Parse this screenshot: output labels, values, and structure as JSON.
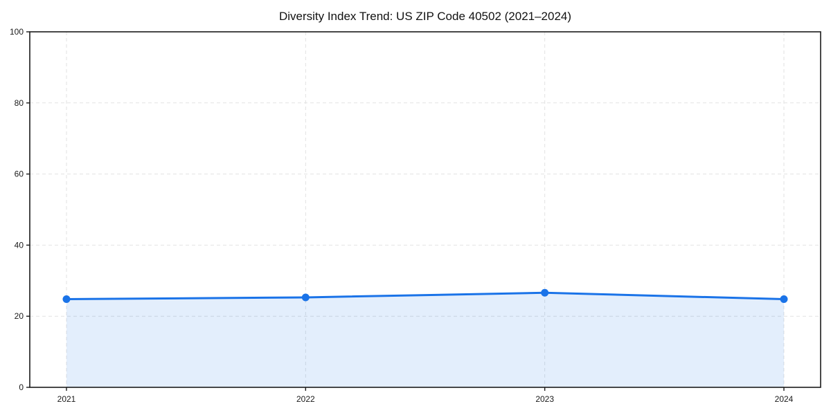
{
  "chart_data": {
    "type": "line",
    "title": "Diversity Index Trend: US ZIP Code 40502 (2021–2024)",
    "x": [
      "2021",
      "2022",
      "2023",
      "2024"
    ],
    "series": [
      {
        "name": "Diversity Index",
        "values": [
          24.8,
          25.3,
          26.6,
          24.8
        ]
      }
    ],
    "xlabel": "",
    "ylabel": "",
    "ylim": [
      0,
      100
    ],
    "yticks": [
      0,
      20,
      40,
      60,
      80,
      100
    ],
    "grid": "dashed",
    "legend_position": "none",
    "marker": "circle",
    "area_fill": true,
    "colors": {
      "line": "#1a73e8",
      "area_fill": "rgba(26,115,232,0.12)",
      "grid": "#e2e2e2",
      "spine": "#1a1a1a",
      "tick_text": "#1a1a1a",
      "background": "#ffffff"
    }
  }
}
